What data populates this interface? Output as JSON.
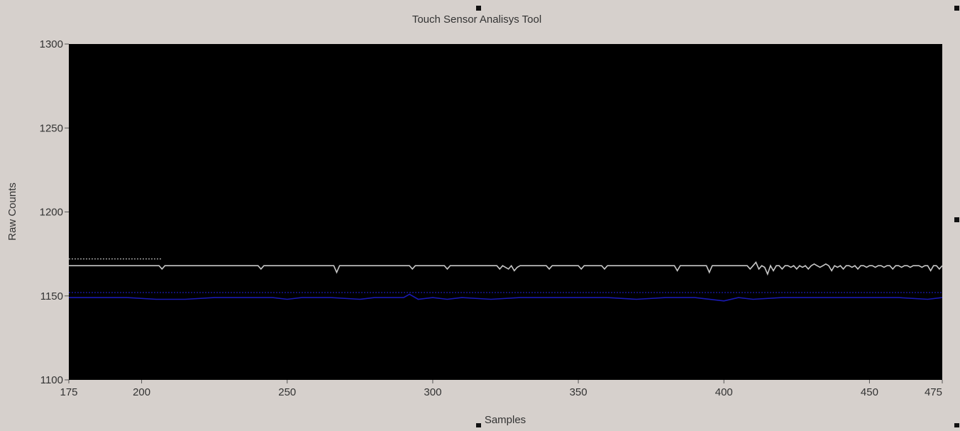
{
  "window": {
    "title": "Touch Sensor Analisys Tool"
  },
  "colors": {
    "background": "#d6d0cc",
    "plot_background": "#000000",
    "raw_series": "#c8c8c8",
    "baseline_series": "#1a1ab4",
    "axis_text": "#333333"
  },
  "chart_data": {
    "type": "line",
    "title": "Touch Sensor Analisys Tool",
    "xlabel": "Samples",
    "ylabel": "Raw Counts",
    "xlim": [
      175,
      475
    ],
    "ylim": [
      1100,
      1300
    ],
    "x_ticks": [
      175,
      200,
      250,
      300,
      350,
      400,
      450,
      475
    ],
    "y_ticks": [
      1100,
      1150,
      1200,
      1250,
      1300
    ],
    "grid": false,
    "legend": "none",
    "series": [
      {
        "style": "solid",
        "color": "#c8c8c8",
        "x": [
          175,
          206,
          207,
          208,
          240,
          241,
          242,
          266,
          267,
          268,
          292,
          293,
          294,
          304,
          305,
          306,
          322,
          323,
          324,
          326,
          327,
          328,
          329,
          330,
          339,
          340,
          341,
          350,
          351,
          352,
          358,
          359,
          360,
          383,
          384,
          385,
          394,
          395,
          396,
          408,
          409,
          410,
          411,
          412,
          413,
          414,
          415,
          416,
          417,
          418,
          419,
          420,
          421,
          422,
          423,
          424,
          425,
          426,
          427,
          428,
          429,
          430,
          431,
          432,
          433,
          434,
          435,
          436,
          437,
          438,
          439,
          440,
          441,
          442,
          443,
          444,
          445,
          446,
          447,
          448,
          449,
          450,
          451,
          452,
          453,
          454,
          455,
          456,
          457,
          458,
          459,
          460,
          461,
          462,
          463,
          464,
          465,
          466,
          467,
          468,
          469,
          470,
          471,
          472,
          473,
          474,
          475
        ],
        "y": [
          1168,
          1168,
          1166,
          1168,
          1168,
          1166,
          1168,
          1168,
          1164,
          1168,
          1168,
          1166,
          1168,
          1168,
          1166,
          1168,
          1168,
          1166,
          1168,
          1166,
          1168,
          1165,
          1167,
          1168,
          1168,
          1166,
          1168,
          1168,
          1166,
          1168,
          1168,
          1166,
          1168,
          1168,
          1165,
          1168,
          1168,
          1164,
          1168,
          1168,
          1166,
          1168,
          1170,
          1166,
          1168,
          1167,
          1163,
          1168,
          1165,
          1168,
          1168,
          1166,
          1168,
          1168,
          1167,
          1168,
          1166,
          1168,
          1167,
          1168,
          1166,
          1168,
          1169,
          1168,
          1167,
          1168,
          1169,
          1168,
          1165,
          1168,
          1167,
          1168,
          1166,
          1168,
          1168,
          1167,
          1168,
          1166,
          1168,
          1168,
          1167,
          1168,
          1168,
          1167,
          1168,
          1168,
          1167,
          1168,
          1168,
          1166,
          1168,
          1168,
          1167,
          1168,
          1168,
          1167,
          1168,
          1168,
          1168,
          1167,
          1168,
          1168,
          1165,
          1168,
          1168,
          1166,
          1168
        ]
      },
      {
        "style": "dotted",
        "color": "#c8c8c8",
        "x": [
          175,
          207
        ],
        "y": [
          1172,
          1172
        ]
      },
      {
        "style": "solid",
        "color": "#1a1ab4",
        "x": [
          175,
          185,
          195,
          205,
          215,
          225,
          235,
          245,
          250,
          255,
          265,
          275,
          280,
          290,
          292,
          295,
          300,
          305,
          310,
          320,
          330,
          340,
          350,
          360,
          370,
          380,
          390,
          400,
          405,
          410,
          420,
          430,
          440,
          450,
          460,
          470,
          475
        ],
        "y": [
          1149,
          1149,
          1149,
          1148,
          1148,
          1149,
          1149,
          1149,
          1148,
          1149,
          1149,
          1148,
          1149,
          1149,
          1151,
          1148,
          1149,
          1148,
          1149,
          1148,
          1149,
          1149,
          1149,
          1149,
          1148,
          1149,
          1149,
          1147,
          1149,
          1148,
          1149,
          1149,
          1149,
          1149,
          1149,
          1148,
          1149
        ]
      },
      {
        "style": "dotted",
        "color": "#1a1ab4",
        "x": [
          175,
          475
        ],
        "y": [
          1152,
          1152
        ]
      }
    ]
  }
}
